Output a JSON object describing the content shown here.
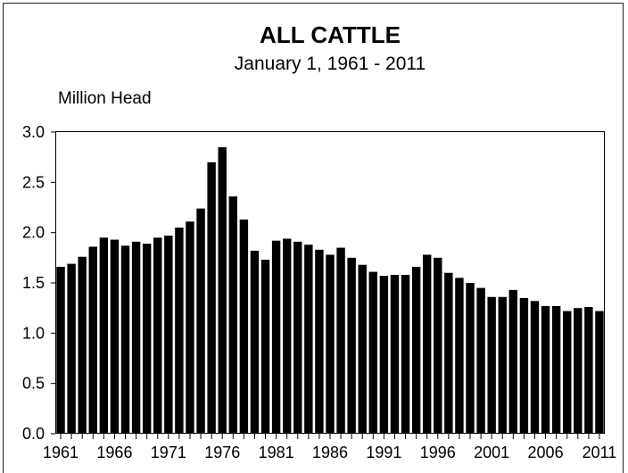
{
  "chart_data": {
    "type": "bar",
    "title": "ALL CATTLE",
    "subtitle": "January 1, 1961 - 2011",
    "ylabel": "Million Head",
    "ylim": [
      0,
      3.0
    ],
    "yticks": [
      "0.0",
      "0.5",
      "1.0",
      "1.5",
      "2.0",
      "2.5",
      "3.0"
    ],
    "xticks": [
      "1961",
      "1966",
      "1971",
      "1976",
      "1981",
      "1986",
      "1991",
      "1996",
      "2001",
      "2006",
      "2011"
    ],
    "grid": false,
    "bar_color": "#000000",
    "categories": [
      "1961",
      "1962",
      "1963",
      "1964",
      "1965",
      "1966",
      "1967",
      "1968",
      "1969",
      "1970",
      "1971",
      "1972",
      "1973",
      "1974",
      "1975",
      "1976",
      "1977",
      "1978",
      "1979",
      "1980",
      "1981",
      "1982",
      "1983",
      "1984",
      "1985",
      "1986",
      "1987",
      "1988",
      "1989",
      "1990",
      "1991",
      "1992",
      "1993",
      "1994",
      "1995",
      "1996",
      "1997",
      "1998",
      "1999",
      "2000",
      "2001",
      "2002",
      "2003",
      "2004",
      "2005",
      "2006",
      "2007",
      "2008",
      "2009",
      "2010",
      "2011"
    ],
    "values": [
      1.66,
      1.69,
      1.76,
      1.86,
      1.95,
      1.93,
      1.87,
      1.91,
      1.89,
      1.95,
      1.97,
      2.05,
      2.11,
      2.24,
      2.7,
      2.85,
      2.36,
      2.13,
      1.82,
      1.73,
      1.92,
      1.94,
      1.91,
      1.88,
      1.83,
      1.78,
      1.85,
      1.75,
      1.68,
      1.61,
      1.57,
      1.58,
      1.58,
      1.66,
      1.78,
      1.75,
      1.6,
      1.55,
      1.5,
      1.45,
      1.36,
      1.36,
      1.43,
      1.35,
      1.32,
      1.27,
      1.27,
      1.22,
      1.25,
      1.26,
      1.22
    ]
  }
}
